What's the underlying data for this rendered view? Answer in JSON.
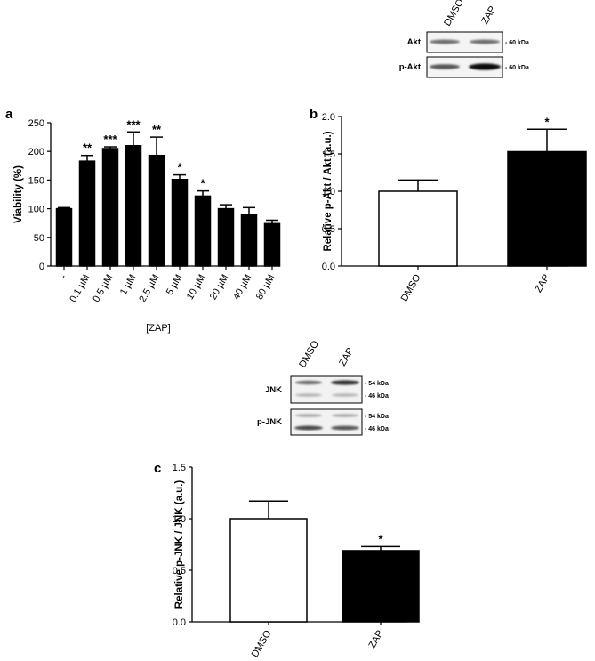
{
  "panel_labels": {
    "a": "a",
    "b": "b",
    "c": "c"
  },
  "blot_akt": {
    "columns": [
      "DMSO",
      "ZAP"
    ],
    "rows": [
      {
        "label": "Akt",
        "markers": [
          "- 60 kDa"
        ],
        "band_intensity": [
          0.55,
          0.55
        ]
      },
      {
        "label": "p-Akt",
        "markers": [
          "- 60 kDa"
        ],
        "band_intensity": [
          0.65,
          0.95
        ]
      }
    ]
  },
  "blot_jnk": {
    "columns": [
      "DMSO",
      "ZAP"
    ],
    "rows": [
      {
        "label": "JNK",
        "markers": [
          "- 54 kDa",
          "- 46 kDa"
        ]
      },
      {
        "label": "p-JNK",
        "markers": [
          "- 54 kDa",
          "- 46 kDa"
        ]
      }
    ]
  },
  "chart_data": [
    {
      "panel": "a",
      "type": "bar",
      "title": "",
      "xlabel": "[ZAP]",
      "ylabel": "Viability (%)",
      "ylim": [
        0,
        250
      ],
      "yticks": [
        "0",
        "50",
        "100",
        "150",
        "200",
        "250"
      ],
      "categories": [
        "-",
        "0.1 µM",
        "0.5 µM",
        "1 µM",
        "2.5 µM",
        "5 µM",
        "10 µM",
        "20 µM",
        "40 µM",
        "80 µM"
      ],
      "values": [
        100,
        183,
        205,
        210,
        193,
        151,
        122,
        100,
        90,
        74
      ],
      "errors": [
        2,
        10,
        3,
        24,
        32,
        8,
        9,
        7,
        12,
        6
      ],
      "significance": [
        "",
        "**",
        "***",
        "***",
        "**",
        "*",
        "*",
        "",
        "",
        ""
      ],
      "bar_color": "#000000"
    },
    {
      "panel": "b",
      "type": "bar",
      "title": "",
      "xlabel": "",
      "ylabel": "Relative p-Akt / Akt (a.u.)",
      "ylim": [
        0,
        2.0
      ],
      "yticks": [
        "0.0",
        "0.5",
        "1.0",
        "1.5",
        "2.0"
      ],
      "categories": [
        "DMSO",
        "ZAP"
      ],
      "values": [
        1.0,
        1.53
      ],
      "errors": [
        0.15,
        0.3
      ],
      "significance": [
        "",
        "*"
      ],
      "bar_colors": [
        "#ffffff",
        "#000000"
      ]
    },
    {
      "panel": "c",
      "type": "bar",
      "title": "",
      "xlabel": "",
      "ylabel": "Relative p-JNK / JNK (a.u.)",
      "ylim": [
        0,
        1.5
      ],
      "yticks": [
        "0.0",
        "0.5",
        "1.0",
        "1.5"
      ],
      "categories": [
        "DMSO",
        "ZAP"
      ],
      "values": [
        1.0,
        0.69
      ],
      "errors": [
        0.17,
        0.04
      ],
      "significance": [
        "",
        "*"
      ],
      "bar_colors": [
        "#ffffff",
        "#000000"
      ]
    }
  ]
}
